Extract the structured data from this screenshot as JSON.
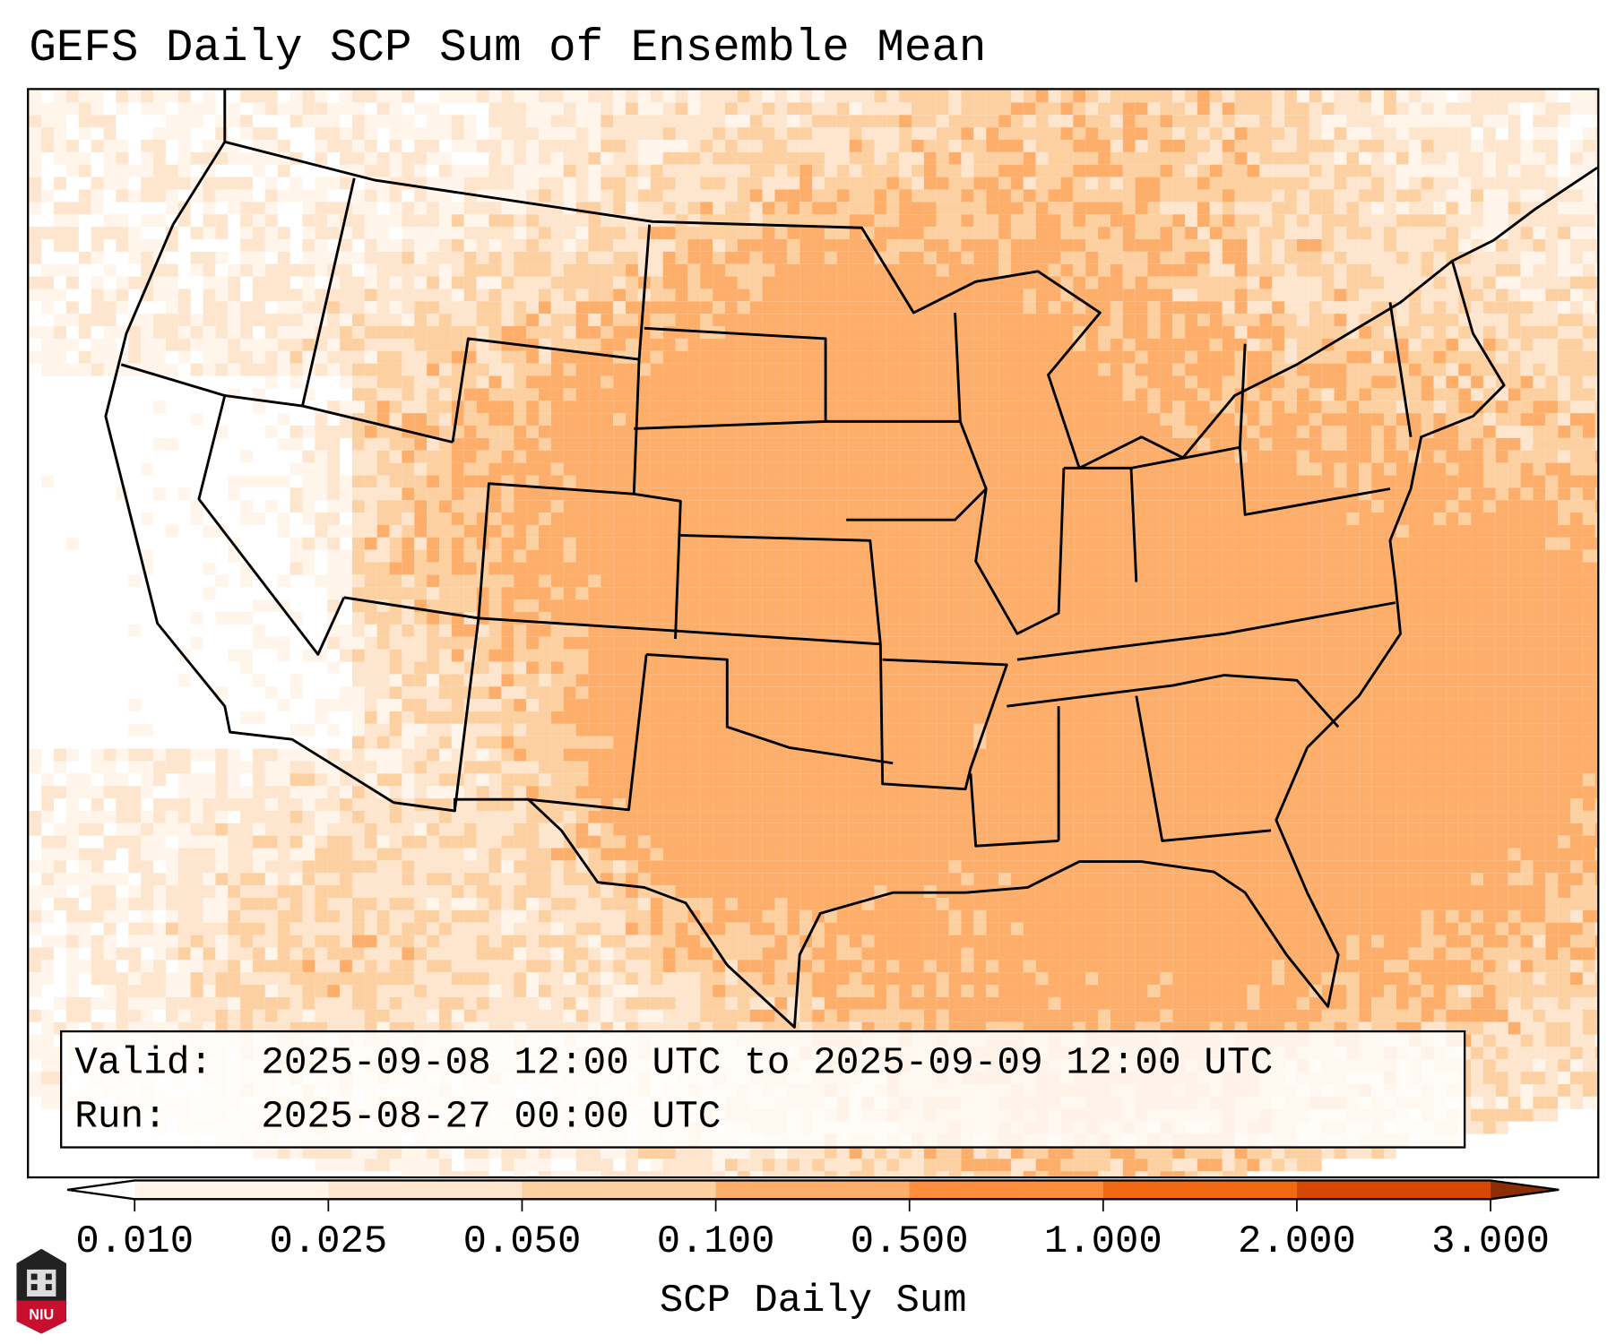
{
  "chart_data": {
    "type": "heatmap",
    "title": "GEFS Daily SCP Sum of Ensemble Mean",
    "colorbar": {
      "label": "SCP Daily Sum",
      "levels": [
        0.01,
        0.025,
        0.05,
        0.1,
        0.5,
        1.0,
        2.0,
        3.0
      ],
      "tick_labels": [
        "0.010",
        "0.025",
        "0.050",
        "0.100",
        "0.500",
        "1.000",
        "2.000",
        "3.000"
      ],
      "colors": [
        "#fff5eb",
        "#fee6ce",
        "#fdd0a2",
        "#fdae6b",
        "#fd8d3c",
        "#f16913",
        "#d94801",
        "#8c2d04"
      ],
      "extend": "both"
    },
    "region": "Contiguous United States",
    "valid_label": "Valid:",
    "valid_text": "2025-09-08 12:00 UTC to 2025-09-09 12:00 UTC",
    "run_label": "Run:",
    "run_text": "2025-08-27 00:00 UTC",
    "notes": "Highest values (0.100-0.500) over central Plains, Texas, Gulf of Mexico and western Atlantic"
  },
  "logo_text": "NIU"
}
